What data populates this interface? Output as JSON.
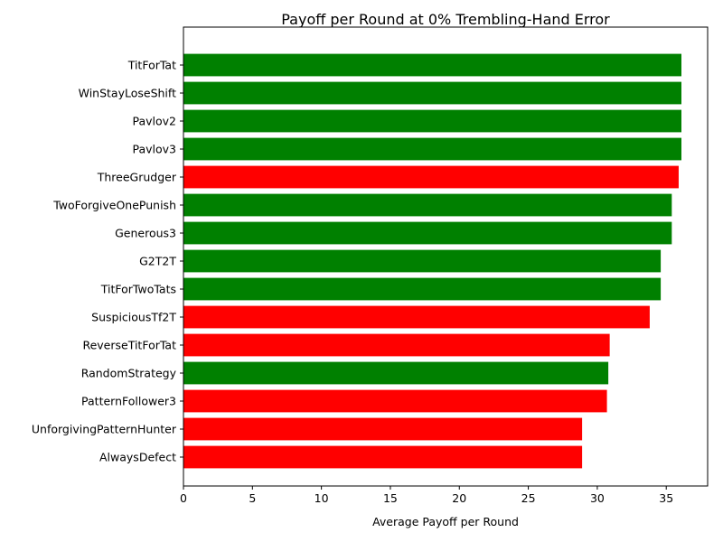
{
  "chart_data": {
    "type": "bar",
    "orientation": "horizontal",
    "title": "Payoff per Round at 0% Trembling-Hand Error",
    "xlabel": "Average Payoff per Round",
    "ylabel": "",
    "xlim": [
      0,
      38
    ],
    "xticks": [
      0,
      5,
      10,
      15,
      20,
      25,
      30,
      35
    ],
    "grid": false,
    "legend": "none",
    "colors": {
      "cooperative": "#008000",
      "defective": "#ff0000"
    },
    "bars": [
      {
        "label": "TitForTat",
        "value": 36.1,
        "color": "#008000"
      },
      {
        "label": "WinStayLoseShift",
        "value": 36.1,
        "color": "#008000"
      },
      {
        "label": "Pavlov2",
        "value": 36.1,
        "color": "#008000"
      },
      {
        "label": "Pavlov3",
        "value": 36.1,
        "color": "#008000"
      },
      {
        "label": "ThreeGrudger",
        "value": 35.9,
        "color": "#ff0000"
      },
      {
        "label": "TwoForgiveOnePunish",
        "value": 35.4,
        "color": "#008000"
      },
      {
        "label": "Generous3",
        "value": 35.4,
        "color": "#008000"
      },
      {
        "label": "G2T2T",
        "value": 34.6,
        "color": "#008000"
      },
      {
        "label": "TitForTwoTats",
        "value": 34.6,
        "color": "#008000"
      },
      {
        "label": "SuspiciousTf2T",
        "value": 33.8,
        "color": "#ff0000"
      },
      {
        "label": "ReverseTitForTat",
        "value": 30.9,
        "color": "#ff0000"
      },
      {
        "label": "RandomStrategy",
        "value": 30.8,
        "color": "#008000"
      },
      {
        "label": "PatternFollower3",
        "value": 30.7,
        "color": "#ff0000"
      },
      {
        "label": "UnforgivingPatternHunter",
        "value": 28.9,
        "color": "#ff0000"
      },
      {
        "label": "AlwaysDefect",
        "value": 28.9,
        "color": "#ff0000"
      }
    ]
  }
}
